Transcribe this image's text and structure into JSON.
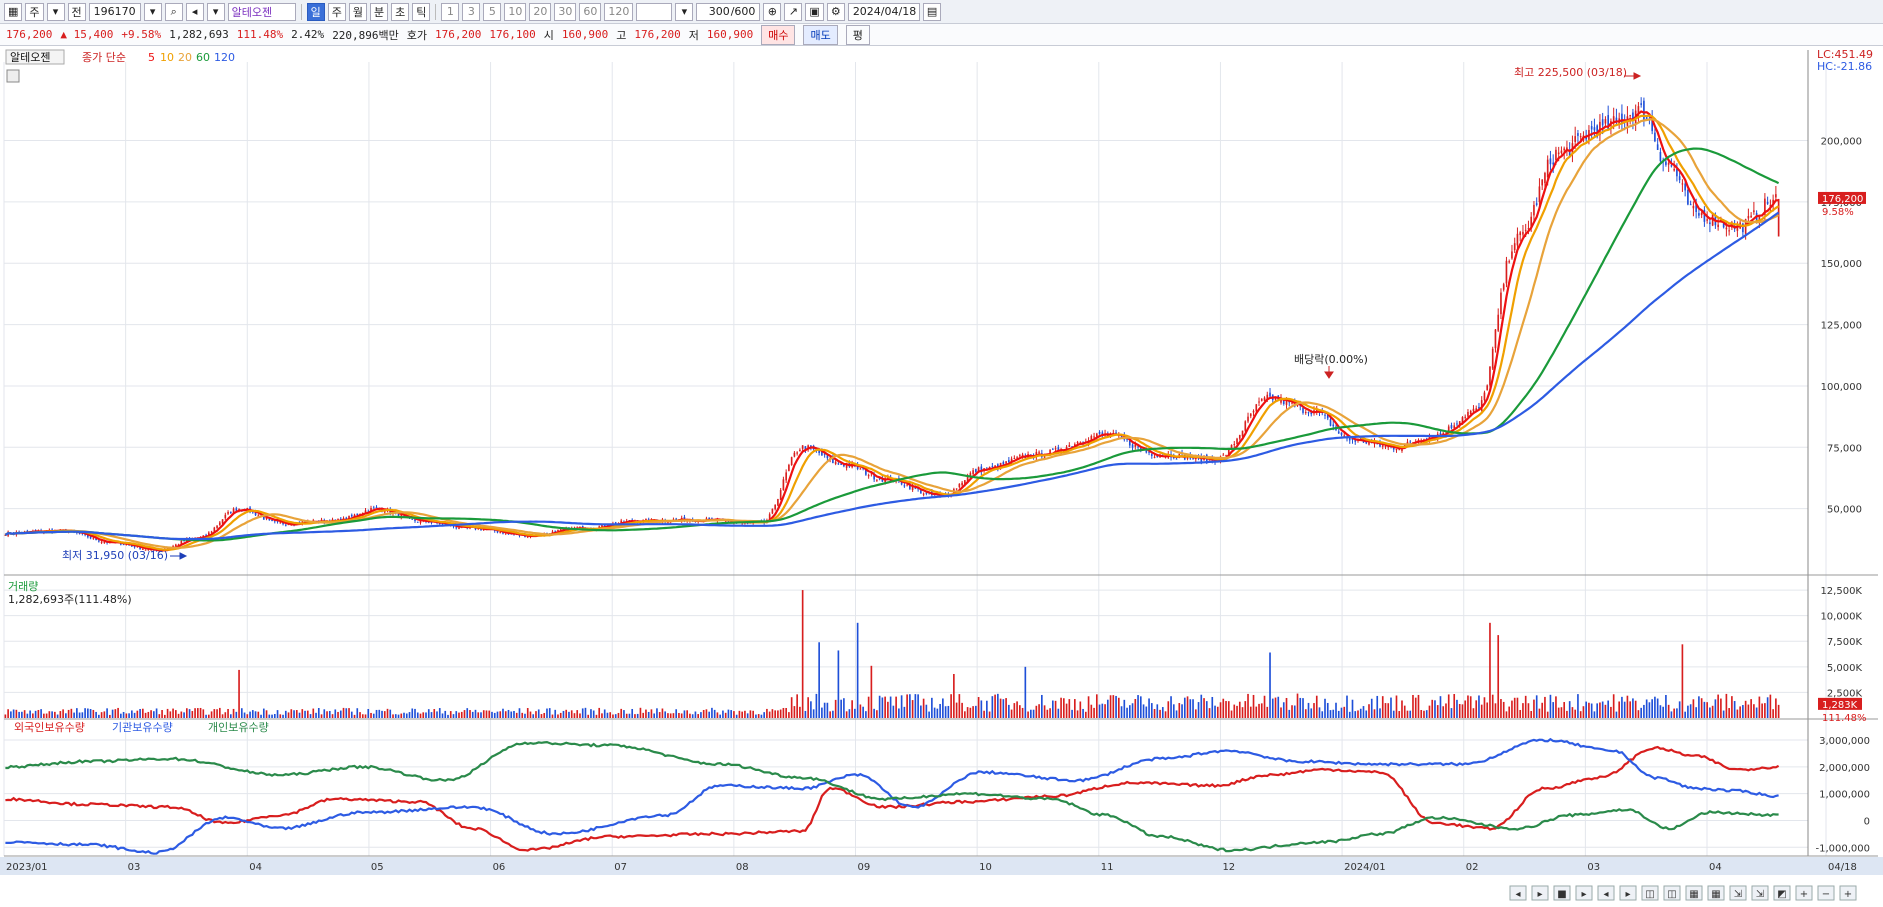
{
  "toolbar": {
    "mode": "주",
    "stock_code": "196170",
    "stock_name": "알테오젠",
    "periods": [
      "일",
      "주",
      "월",
      "분",
      "초",
      "틱"
    ],
    "active_period": "일",
    "minute_opts": [
      "1",
      "3",
      "5",
      "10",
      "20",
      "30",
      "60",
      "120"
    ],
    "count": "300",
    "max_count": "/600",
    "date": "2024/04/18"
  },
  "quote": {
    "price": "176,200",
    "change": "▲ 15,400",
    "change_pct": "+9.58%",
    "volume": "1,282,693",
    "volume_ratio": "111.48%",
    "turnover": "2.42%",
    "amount": "220,896백만",
    "ask_label": "호가",
    "ask": "176,200",
    "bid": "176,100",
    "open_label": "시",
    "open": "160,900",
    "high_label": "고",
    "high": "176,200",
    "low_label": "저",
    "low": "160,900",
    "buy_label": "매수",
    "sell_label": "매도",
    "eval_label": "평"
  },
  "price_panel": {
    "title": "알테오젠",
    "ma_label": "종가 단순",
    "ma_periods": [
      "5",
      "10",
      "20",
      "60",
      "120"
    ],
    "ma_colors": [
      "#e11",
      "#f0a000",
      "#e8a33a",
      "#1a9a3a",
      "#2d5be3"
    ],
    "lc": "LC:451.49",
    "hc": "HC:-21.86",
    "high_note": "최고 225,500 (03/18)",
    "low_note": "최저 31,950 (03/16)",
    "dividend_note": "배당락(0.00%)",
    "last_price_tag": "176,200",
    "last_pct_tag": "9.58%"
  },
  "volume_panel": {
    "title": "거래량",
    "value": "1,282,693주(111.48%)",
    "last_tag": "1,283K",
    "last_pct": "111.48%"
  },
  "holding_panel": {
    "series_names": [
      "외국인보유수량",
      "기관보유수량",
      "개인보유수량"
    ],
    "series_colors": [
      "#d81e1e",
      "#2d5be3",
      "#2a8a4a"
    ]
  },
  "chart_data": [
    {
      "type": "candlestick",
      "title": "알테오젠",
      "y_axis_ticks": [
        "200,000",
        "175,000",
        "150,000",
        "125,000",
        "100,000",
        "75,000",
        "50,000"
      ],
      "ylim": [
        25000,
        232000
      ],
      "x_tick_labels": [
        "2023/01",
        "03",
        "04",
        "05",
        "06",
        "07",
        "08",
        "09",
        "10",
        "11",
        "12",
        "2024/01",
        "02",
        "03",
        "04",
        "04/18"
      ],
      "series_ma": [
        {
          "name": "5",
          "color": "#e11"
        },
        {
          "name": "10",
          "color": "#f0a000"
        },
        {
          "name": "20",
          "color": "#e8a33a"
        },
        {
          "name": "60",
          "color": "#1a9a3a"
        },
        {
          "name": "120",
          "color": "#2d5be3"
        }
      ],
      "anchors_close": [
        [
          0,
          40000
        ],
        [
          20,
          41000
        ],
        [
          40,
          36000
        ],
        [
          55,
          33000
        ],
        [
          70,
          38000
        ],
        [
          85,
          50000
        ],
        [
          100,
          44000
        ],
        [
          120,
          45000
        ],
        [
          135,
          50000
        ],
        [
          150,
          45000
        ],
        [
          170,
          42000
        ],
        [
          190,
          39000
        ],
        [
          210,
          42000
        ],
        [
          230,
          45000
        ],
        [
          250,
          45500
        ],
        [
          275,
          44000
        ],
        [
          290,
          75000
        ],
        [
          305,
          68000
        ],
        [
          320,
          62000
        ],
        [
          340,
          55000
        ],
        [
          355,
          66000
        ],
        [
          375,
          72000
        ],
        [
          400,
          80000
        ],
        [
          420,
          72000
        ],
        [
          440,
          70000
        ],
        [
          460,
          95000
        ],
        [
          475,
          90000
        ],
        [
          490,
          78000
        ],
        [
          505,
          75000
        ],
        [
          520,
          80000
        ],
        [
          535,
          90000
        ],
        [
          550,
          160000
        ],
        [
          565,
          195000
        ],
        [
          580,
          205000
        ],
        [
          595,
          212000
        ],
        [
          605,
          190000
        ],
        [
          615,
          170000
        ],
        [
          630,
          165000
        ],
        [
          645,
          176200
        ]
      ],
      "last": {
        "close": 176200,
        "open": 160900,
        "high": 176200,
        "low": 160900
      }
    },
    {
      "type": "bar",
      "title": "거래량",
      "y_axis_ticks": [
        "12,500K",
        "10,000K",
        "7,500K",
        "5,000K",
        "2,500K"
      ],
      "ylim": [
        0,
        12800
      ],
      "unit": "K",
      "spikes": [
        [
          85,
          4700
        ],
        [
          290,
          12500
        ],
        [
          296,
          7400
        ],
        [
          303,
          6600
        ],
        [
          310,
          9300
        ],
        [
          315,
          5100
        ],
        [
          345,
          4300
        ],
        [
          371,
          5000
        ],
        [
          460,
          6400
        ],
        [
          540,
          9300
        ],
        [
          543,
          8100
        ],
        [
          610,
          7200
        ]
      ]
    },
    {
      "type": "line",
      "title": "",
      "y_axis_ticks": [
        "3,000,000",
        "2,000,000",
        "1,000,000",
        "0",
        "-1,000,000"
      ],
      "ylim": [
        -1250000,
        3300000
      ],
      "series": [
        {
          "name": "외국인보유수량",
          "color": "#d81e1e",
          "anchors": [
            [
              0,
              800000
            ],
            [
              30,
              600000
            ],
            [
              60,
              500000
            ],
            [
              80,
              -100000
            ],
            [
              100,
              200000
            ],
            [
              120,
              800000
            ],
            [
              150,
              700000
            ],
            [
              170,
              -300000
            ],
            [
              190,
              -1100000
            ],
            [
              220,
              -600000
            ],
            [
              260,
              -500000
            ],
            [
              290,
              -400000
            ],
            [
              300,
              1200000
            ],
            [
              320,
              500000
            ],
            [
              350,
              700000
            ],
            [
              380,
              900000
            ],
            [
              410,
              1400000
            ],
            [
              440,
              1300000
            ],
            [
              460,
              1700000
            ],
            [
              480,
              1900000
            ],
            [
              500,
              1800000
            ],
            [
              520,
              -100000
            ],
            [
              540,
              -300000
            ],
            [
              560,
              1200000
            ],
            [
              580,
              1600000
            ],
            [
              600,
              2700000
            ],
            [
              615,
              2400000
            ],
            [
              630,
              1900000
            ],
            [
              645,
              2000000
            ]
          ]
        },
        {
          "name": "기관보유수량",
          "color": "#2d5be3",
          "anchors": [
            [
              0,
              -800000
            ],
            [
              30,
              -900000
            ],
            [
              55,
              -1200000
            ],
            [
              80,
              100000
            ],
            [
              100,
              -300000
            ],
            [
              130,
              300000
            ],
            [
              170,
              500000
            ],
            [
              200,
              -500000
            ],
            [
              240,
              200000
            ],
            [
              260,
              1300000
            ],
            [
              290,
              1200000
            ],
            [
              310,
              1700000
            ],
            [
              330,
              500000
            ],
            [
              355,
              1800000
            ],
            [
              390,
              1500000
            ],
            [
              420,
              2300000
            ],
            [
              445,
              2600000
            ],
            [
              470,
              2200000
            ],
            [
              500,
              2100000
            ],
            [
              530,
              2100000
            ],
            [
              560,
              3000000
            ],
            [
              585,
              2600000
            ],
            [
              600,
              1600000
            ],
            [
              615,
              1200000
            ],
            [
              630,
              1100000
            ],
            [
              645,
              900000
            ]
          ]
        },
        {
          "name": "개인보유수량",
          "color": "#2a8a4a",
          "anchors": [
            [
              0,
              2000000
            ],
            [
              30,
              2200000
            ],
            [
              60,
              2300000
            ],
            [
              100,
              1700000
            ],
            [
              130,
              2000000
            ],
            [
              160,
              1500000
            ],
            [
              190,
              2900000
            ],
            [
              220,
              2800000
            ],
            [
              260,
              2100000
            ],
            [
              290,
              1600000
            ],
            [
              320,
              800000
            ],
            [
              350,
              1000000
            ],
            [
              380,
              800000
            ],
            [
              400,
              200000
            ],
            [
              420,
              -600000
            ],
            [
              445,
              -1100000
            ],
            [
              480,
              -800000
            ],
            [
              500,
              -500000
            ],
            [
              520,
              100000
            ],
            [
              550,
              -300000
            ],
            [
              570,
              200000
            ],
            [
              590,
              400000
            ],
            [
              605,
              -300000
            ],
            [
              620,
              300000
            ],
            [
              645,
              200000
            ]
          ]
        }
      ]
    }
  ]
}
